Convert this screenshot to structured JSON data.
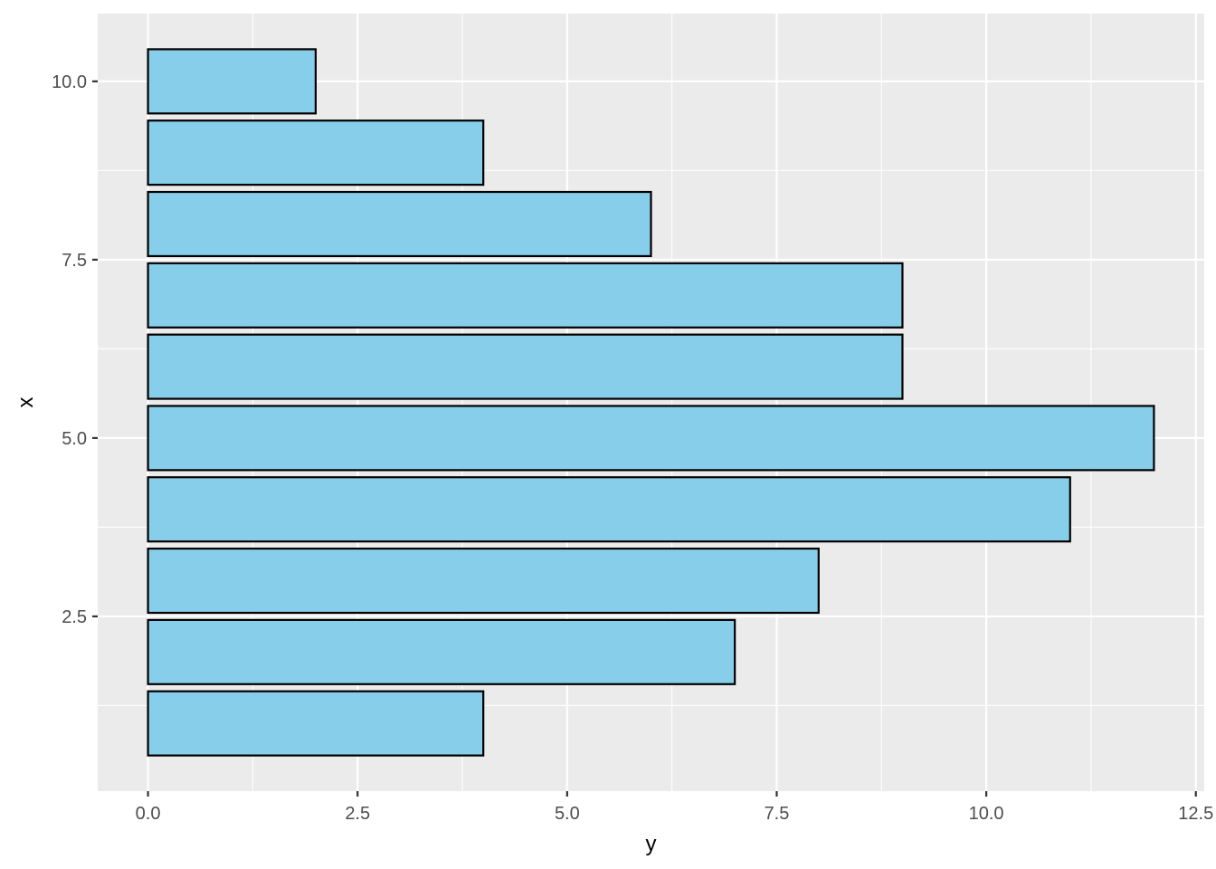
{
  "chart_data": {
    "type": "bar",
    "orientation": "horizontal",
    "xlabel": "y",
    "ylabel": "x",
    "categories": [
      1,
      2,
      3,
      4,
      5,
      6,
      7,
      8,
      9,
      10
    ],
    "values": [
      4,
      7,
      8,
      11,
      12,
      9,
      9,
      6,
      4,
      2
    ],
    "value_axis": {
      "range": [
        -0.6,
        12.6
      ],
      "ticks": [
        "0.0",
        "2.5",
        "5.0",
        "7.5",
        "10.0",
        "12.5"
      ]
    },
    "category_axis": {
      "range": [
        0.05,
        10.95
      ],
      "ticks": [
        "2.5",
        "5.0",
        "7.5",
        "10.0"
      ]
    },
    "grid": true,
    "legend": "none",
    "colors": {
      "bar_fill": "#87ceeb",
      "bar_stroke": "#000000",
      "panel": "#ebebeb",
      "grid": "#ffffff"
    }
  }
}
